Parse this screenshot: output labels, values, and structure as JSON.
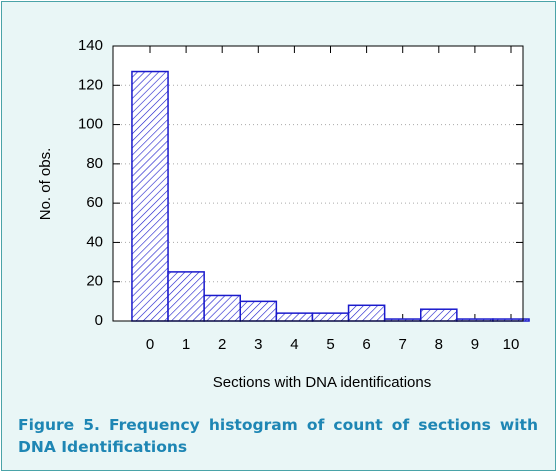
{
  "chart_data": {
    "type": "bar",
    "x_label": "Sections with DNA identifications",
    "y_label": "No. of obs.",
    "categories": [
      "0",
      "1",
      "2",
      "3",
      "4",
      "5",
      "6",
      "7",
      "8",
      "9",
      "10"
    ],
    "values": [
      127,
      25,
      13,
      10,
      4,
      4,
      8,
      1,
      6,
      1,
      1
    ],
    "color": "#1a1acc",
    "ylim": [
      0,
      140
    ],
    "yticks": [
      0,
      20,
      40,
      60,
      80,
      100,
      120,
      140
    ],
    "grid": true
  },
  "caption": "Figure 5.  Frequency histogram of count of sections with DNA Identifications"
}
